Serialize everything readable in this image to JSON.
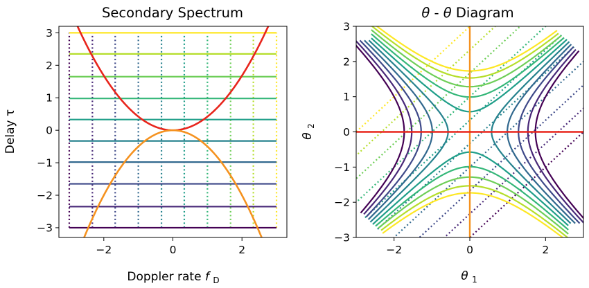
{
  "colors": {
    "viridis": [
      "#440154",
      "#482878",
      "#3e4989",
      "#31688e",
      "#26828e",
      "#1f9e89",
      "#35b779",
      "#6ece58",
      "#b5de2b",
      "#fde725"
    ],
    "parabola_upper": "#e8251c",
    "parabola_lower": "#f5921f",
    "theta_axis_v": "#f5921f",
    "theta_axis_h": "#e8251c"
  },
  "chart_data": [
    {
      "type": "line",
      "title": "Secondary Spectrum",
      "xlabel": "Doppler rate",
      "xlabel_symbol": "f",
      "xlabel_subscript": "D",
      "ylabel": "Delay τ",
      "xlim": [
        -3.3,
        3.3
      ],
      "ylim": [
        -3.3,
        3.2
      ],
      "xticks": [
        -2,
        0,
        2
      ],
      "xticklabels": [
        "−2",
        "0",
        "2"
      ],
      "yticks": [
        -3,
        -2,
        -1,
        0,
        1,
        2,
        3
      ],
      "yticklabels": [
        "−3",
        "−2",
        "−1",
        "0",
        "1",
        "2",
        "3"
      ],
      "grid": false,
      "horizontal_lines_tau": [
        -3.0,
        -2.35,
        -1.65,
        -0.98,
        -0.33,
        0.33,
        0.98,
        1.65,
        2.35,
        3.0
      ],
      "horizontal_lines_x_range": [
        -3.0,
        3.0
      ],
      "vertical_dotted_lines_fd": [
        -3.0,
        -2.33,
        -1.67,
        -1.0,
        -0.33,
        0.33,
        1.0,
        1.67,
        2.33,
        3.0
      ],
      "vertical_dotted_lines_y_range": [
        -3.0,
        3.0
      ],
      "parabolas": [
        {
          "color_key": "parabola_upper",
          "curvature": 0.42,
          "x_range": [
            -2.85,
            2.85
          ]
        },
        {
          "color_key": "parabola_lower",
          "curvature": -0.5,
          "x_range": [
            -2.6,
            2.6
          ]
        }
      ]
    },
    {
      "type": "line",
      "title": "Diagram",
      "title_symbol": "θ",
      "xlabel_symbol": "θ",
      "xlabel_subscript": "1",
      "ylabel_symbol": "θ",
      "ylabel_subscript": "2",
      "xlim": [
        -3,
        3
      ],
      "ylim": [
        -3,
        3
      ],
      "xticks": [
        -2,
        0,
        2
      ],
      "xticklabels": [
        "−2",
        "0",
        "2"
      ],
      "yticks": [
        -3,
        -2,
        -1,
        0,
        1,
        2,
        3
      ],
      "yticklabels": [
        "−3",
        "−2",
        "−1",
        "0",
        "1",
        "2",
        "3"
      ],
      "grid": false,
      "hyperbola_levels": [
        -3.0,
        -2.35,
        -1.65,
        -0.98,
        -0.33,
        0.33,
        0.98,
        1.65,
        2.35,
        3.0
      ],
      "parameter_range": [
        -2.6,
        2.6
      ],
      "dotted_diagonal_offsets": [
        -3.0,
        -2.33,
        -1.67,
        -1.0,
        -0.33,
        0.33,
        1.0,
        1.67,
        2.33,
        3.0
      ],
      "dotted_diagonal_span": [
        -2.6,
        2.6
      ],
      "axis_lines": {
        "vertical_x": 0,
        "horizontal_y": 0
      }
    }
  ]
}
